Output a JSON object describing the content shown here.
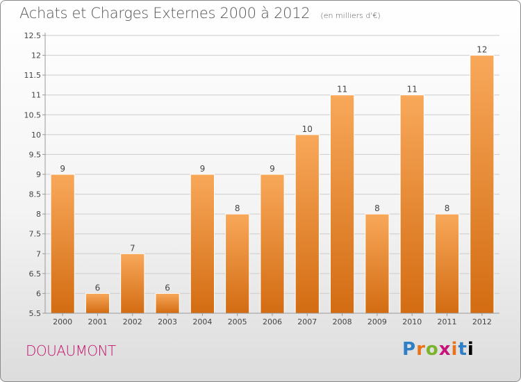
{
  "header": {
    "title": "Achats et Charges Externes 2000 à 2012",
    "unit": "(en milliers d'€)"
  },
  "footer": {
    "locality": "DOUAUMONT",
    "brand_letters": [
      "P",
      "r",
      "o",
      "x",
      "i",
      "t",
      "i"
    ]
  },
  "colors": {
    "bar_light": "#f8a85a",
    "bar_dark": "#d36c12",
    "axis": "#999999",
    "grid": "#cccccc",
    "text": "#444444"
  },
  "chart_data": {
    "type": "bar",
    "title": "Achats et Charges Externes 2000 à 2012",
    "categories": [
      "2000",
      "2001",
      "2002",
      "2003",
      "2004",
      "2005",
      "2006",
      "2007",
      "2008",
      "2009",
      "2010",
      "2011",
      "2012"
    ],
    "values": [
      9,
      6,
      7,
      6,
      9,
      8,
      9,
      10,
      11,
      8,
      11,
      8,
      12
    ],
    "ylim": [
      5.5,
      12.5
    ],
    "yticks": [
      "5.5",
      "6",
      "6.5",
      "7",
      "7.5",
      "8",
      "8.5",
      "9",
      "9.5",
      "10",
      "10.5",
      "11",
      "11.5",
      "12",
      "12.5"
    ],
    "grid": true,
    "legend": "none"
  }
}
